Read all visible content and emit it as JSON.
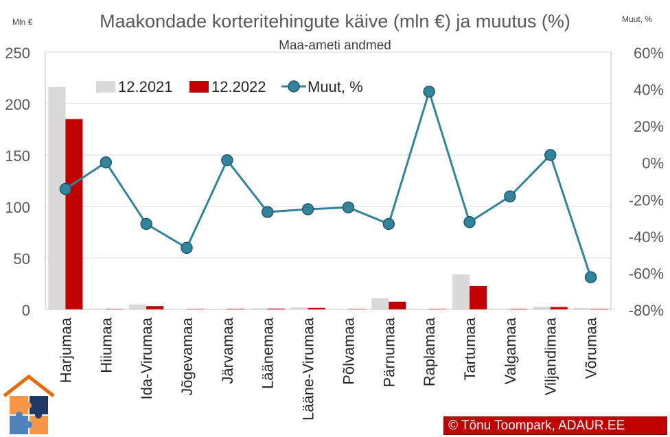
{
  "chart_data": {
    "type": "bar+line",
    "title": "Maakondade korteritehingute käive (mln €) ja muutus (%)",
    "subtitle": "Maa-ameti andmed",
    "ylabel": "Mln €",
    "y2label": "Muut, %",
    "ylim": [
      0,
      250
    ],
    "y2lim": [
      -80,
      60
    ],
    "yticks": [
      "0",
      "50",
      "100",
      "150",
      "200",
      "250"
    ],
    "y2ticks": [
      "-80%",
      "-60%",
      "-40%",
      "-20%",
      "0%",
      "20%",
      "40%",
      "60%"
    ],
    "grid": true,
    "legend_position": "top",
    "categories": [
      "Harjumaa",
      "Hiiumaa",
      "Ida-Virumaa",
      "Jõgevamaa",
      "Järvamaa",
      "Läänemaa",
      "Lääne-Virumaa",
      "Põlvamaa",
      "Pärnumaa",
      "Raplamaa",
      "Tartumaa",
      "Valgamaa",
      "Viljandimaa",
      "Võrumaa"
    ],
    "series": [
      {
        "name": "12.2021",
        "type": "bar",
        "axis": "left",
        "color": "#d9d9d9",
        "values": [
          216,
          0.8,
          4.8,
          0.4,
          0.5,
          1.1,
          2.0,
          0.5,
          11.0,
          0.3,
          34.0,
          0.6,
          2.7,
          1.4
        ]
      },
      {
        "name": "12.2022",
        "type": "bar",
        "axis": "left",
        "color": "#c00000",
        "values": [
          185,
          0.4,
          3.2,
          0.4,
          0.5,
          0.8,
          1.5,
          0.4,
          7.5,
          0.4,
          22.7,
          0.5,
          2.3,
          0.5
        ]
      },
      {
        "name": "Muut, %",
        "type": "line",
        "axis": "right",
        "color": "#31849b",
        "values": [
          -14.5,
          0,
          -33.5,
          -46.5,
          1.2,
          -27,
          -25.5,
          -24.5,
          -33.5,
          38.5,
          -32.5,
          -18.5,
          4,
          -62.5
        ]
      }
    ]
  },
  "credit": "© Tõnu Toompark, ADAUR.EE",
  "colors": {
    "bar2021": "#d9d9d9",
    "bar2022": "#c00000",
    "line": "#31849b",
    "grid": "#d9d9d9",
    "axis_text": "#595959"
  }
}
